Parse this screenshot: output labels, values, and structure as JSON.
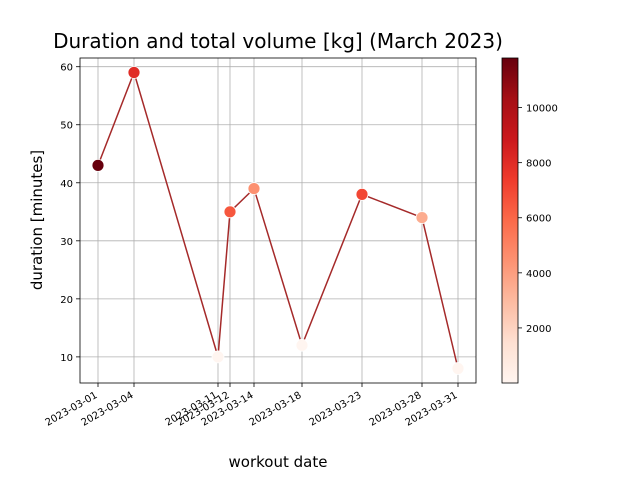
{
  "chart_data": {
    "type": "line",
    "title": "Duration and total volume [kg] (March 2023)",
    "xlabel": "workout date",
    "ylabel": "duration [minutes]",
    "x": [
      "2023-03-01",
      "2023-03-04",
      "2023-03-11",
      "2023-03-12",
      "2023-03-14",
      "2023-03-18",
      "2023-03-23",
      "2023-03-28",
      "2023-03-31"
    ],
    "x_tick_labels": [
      "2023-03-01",
      "2023-03-04",
      "2023-03-11",
      "2023-03-12",
      "2023-03-14",
      "2023-03-18",
      "2023-03-23",
      "2023-03-28",
      "2023-03-31"
    ],
    "series": [
      {
        "values": [
          43,
          59,
          10,
          35,
          39,
          12,
          38,
          34,
          8
        ],
        "total_volume_kg": [
          11800,
          8000,
          0,
          6500,
          4500,
          0,
          7000,
          3500,
          0
        ]
      }
    ],
    "ylim": [
      5.5,
      61.5
    ],
    "y_ticks": [
      10,
      20,
      30,
      40,
      50,
      60
    ],
    "grid": true,
    "line_color": "#a52a2a",
    "colormap": "Reds",
    "colorbar": {
      "range": [
        0,
        11800
      ],
      "ticks": [
        2000,
        4000,
        6000,
        8000,
        10000
      ]
    }
  }
}
